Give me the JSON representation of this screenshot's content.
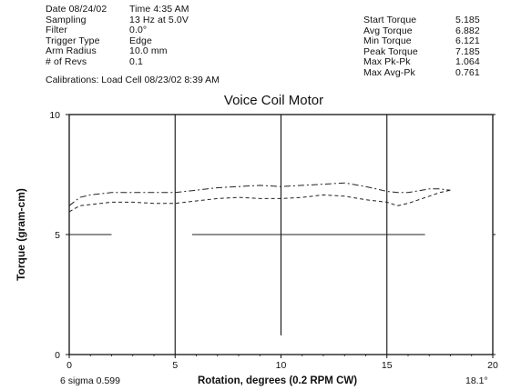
{
  "header": {
    "left": [
      {
        "label": "Date 08/24/02",
        "value": "Time  4:35 AM"
      },
      {
        "label": "Sampling",
        "value": "13 Hz at 5.0V"
      },
      {
        "label": "Filter",
        "value": "0.0°"
      },
      {
        "label": "Trigger Type",
        "value": "Edge"
      },
      {
        "label": "Arm Radius",
        "value": "10.0 mm"
      },
      {
        "label": "# of Revs",
        "value": "0.1"
      }
    ],
    "right": [
      {
        "label": "Start Torque",
        "value": "5.185"
      },
      {
        "label": "Avg Torque",
        "value": "6.882"
      },
      {
        "label": "Min Torque",
        "value": "6.121"
      },
      {
        "label": "Peak Torque",
        "value": "7.185"
      },
      {
        "label": "Max Pk-Pk",
        "value": "1.064"
      },
      {
        "label": "Max Avg-Pk",
        "value": "0.761"
      }
    ],
    "calibration": "Calibrations: Load Cell 08/23/02  8:39 AM"
  },
  "footer": {
    "sigma": "6 sigma 0.599",
    "angle": "18.1°"
  },
  "chart_data": {
    "type": "line",
    "title": "Voice Coil Motor",
    "xlabel": "Rotation, degrees (0.2 RPM CW)",
    "ylabel": "Torque (gram-cm)",
    "xlim": [
      0,
      20
    ],
    "ylim": [
      0,
      10
    ],
    "x_ticks": [
      "0",
      "5",
      "10",
      "15",
      "20"
    ],
    "y_ticks": [
      "0",
      "5",
      "10"
    ],
    "grid": "vertical lines at 5, 10, 15",
    "series": [
      {
        "style": "dash-dot",
        "x": [
          0,
          0.5,
          1,
          2,
          3,
          4,
          5,
          6,
          7,
          8,
          9,
          10,
          11,
          12,
          13,
          14,
          15,
          15.5,
          16,
          17,
          17.5,
          18
        ],
        "y": [
          6.2,
          6.55,
          6.65,
          6.75,
          6.75,
          6.75,
          6.75,
          6.85,
          6.95,
          7.0,
          7.05,
          7.0,
          7.05,
          7.1,
          7.15,
          7.0,
          6.8,
          6.75,
          6.75,
          6.9,
          6.9,
          6.85
        ]
      },
      {
        "style": "dashed",
        "x": [
          0,
          0.5,
          1,
          2,
          3,
          4,
          5,
          6,
          7,
          8,
          9,
          10,
          11,
          12,
          13,
          14,
          15,
          15.5,
          16,
          17,
          17.5,
          18
        ],
        "y": [
          5.95,
          6.2,
          6.25,
          6.35,
          6.35,
          6.3,
          6.3,
          6.4,
          6.5,
          6.55,
          6.5,
          6.5,
          6.55,
          6.65,
          6.6,
          6.45,
          6.35,
          6.2,
          6.3,
          6.6,
          6.75,
          6.85
        ]
      },
      {
        "style": "solid-reference",
        "segments": [
          [
            [
              0,
              5
            ],
            [
              2,
              5
            ]
          ],
          [
            [
              5.8,
              5
            ],
            [
              16.8,
              5
            ]
          ]
        ]
      }
    ]
  }
}
